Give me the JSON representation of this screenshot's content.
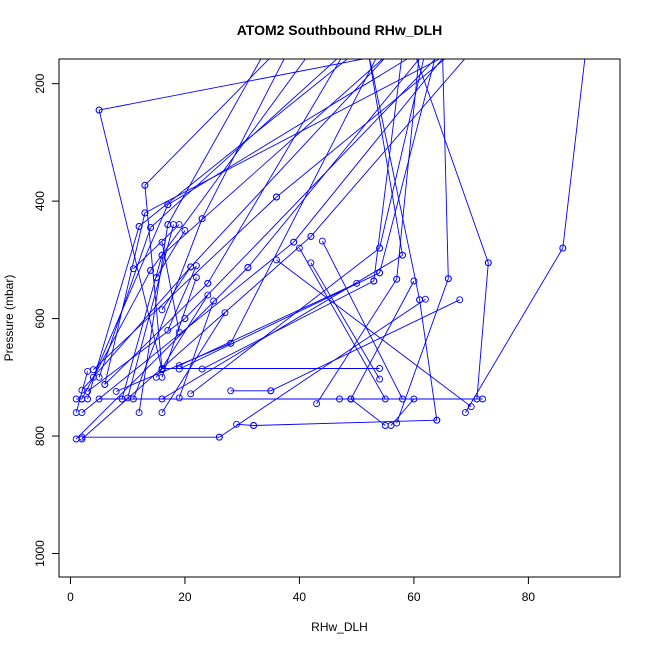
{
  "chart_data": {
    "type": "line",
    "title": "ATOM2 Southbound RHw_DLH",
    "xlabel": "RHw_DLH",
    "ylabel": "Pressure (mbar)",
    "xlim": [
      -2,
      96
    ],
    "ylim": [
      1040,
      158
    ],
    "y_inverted": true,
    "x_ticks": [
      0,
      20,
      40,
      60,
      80
    ],
    "y_ticks": [
      200,
      400,
      600,
      800,
      1000
    ],
    "grid": false,
    "legend": "none",
    "colors": {
      "series": "#0000ff",
      "axes": "#000000",
      "background": "#ffffff"
    },
    "marker": "open-circle",
    "series": [
      {
        "x": [
          5,
          16
        ],
        "y": [
          245,
          687
        ]
      },
      {
        "x": [
          5,
          58
        ],
        "y": [
          245,
          145
        ]
      },
      {
        "x": [
          13,
          16
        ],
        "y": [
          373,
          686
        ]
      },
      {
        "x": [
          13,
          36
        ],
        "y": [
          373,
          145
        ]
      },
      {
        "x": [
          16,
          9
        ],
        "y": [
          492,
          737
        ]
      },
      {
        "x": [
          16,
          56
        ],
        "y": [
          492,
          145
        ]
      },
      {
        "x": [
          28,
          8
        ],
        "y": [
          642,
          724
        ]
      },
      {
        "x": [
          28,
          54
        ],
        "y": [
          642,
          145
        ]
      },
      {
        "x": [
          20,
          3
        ],
        "y": [
          600,
          724
        ]
      },
      {
        "x": [
          20,
          65
        ],
        "y": [
          600,
          145
        ]
      },
      {
        "x": [
          14,
          2
        ],
        "y": [
          518,
          737
        ]
      },
      {
        "x": [
          14,
          42
        ],
        "y": [
          518,
          145
        ]
      },
      {
        "x": [
          12,
          3
        ],
        "y": [
          443,
          737
        ]
      },
      {
        "x": [
          12,
          50
        ],
        "y": [
          443,
          145
        ]
      },
      {
        "x": [
          17,
          4
        ],
        "y": [
          406,
          700
        ]
      },
      {
        "x": [
          17,
          61
        ],
        "y": [
          406,
          145
        ]
      },
      {
        "x": [
          24,
          6
        ],
        "y": [
          540,
          712
        ]
      },
      {
        "x": [
          24,
          48
        ],
        "y": [
          540,
          145
        ]
      },
      {
        "x": [
          13,
          6
        ],
        "y": [
          420,
          712
        ]
      },
      {
        "x": [
          13,
          67
        ],
        "y": [
          420,
          145
        ]
      },
      {
        "x": [
          23,
          11
        ],
        "y": [
          430,
          737
        ]
      },
      {
        "x": [
          23,
          38
        ],
        "y": [
          430,
          145
        ]
      },
      {
        "x": [
          21,
          2
        ],
        "y": [
          512,
          722
        ]
      },
      {
        "x": [
          21,
          56
        ],
        "y": [
          512,
          145
        ]
      },
      {
        "x": [
          36,
          4
        ],
        "y": [
          393,
          687
        ]
      },
      {
        "x": [
          36,
          67
        ],
        "y": [
          393,
          145
        ]
      },
      {
        "x": [
          39,
          2
        ],
        "y": [
          470,
          760
        ]
      },
      {
        "x": [
          39,
          66
        ],
        "y": [
          470,
          145
        ]
      },
      {
        "x": [
          42,
          2
        ],
        "y": [
          460,
          805
        ]
      },
      {
        "x": [
          42,
          70
        ],
        "y": [
          460,
          145
        ]
      },
      {
        "x": [
          31,
          1
        ],
        "y": [
          513,
          805
        ]
      },
      {
        "x": [
          31,
          62
        ],
        "y": [
          513,
          145
        ]
      },
      {
        "x": [
          54,
          19
        ],
        "y": [
          522,
          686
        ]
      },
      {
        "x": [
          54,
          64
        ],
        "y": [
          522,
          145
        ]
      },
      {
        "x": [
          53,
          23
        ],
        "y": [
          536,
          686
        ]
      },
      {
        "x": [
          53,
          58
        ],
        "y": [
          536,
          145
        ]
      },
      {
        "x": [
          57,
          43
        ],
        "y": [
          533,
          745
        ]
      },
      {
        "x": [
          57,
          61
        ],
        "y": [
          533,
          145
        ]
      },
      {
        "x": [
          54,
          21
        ],
        "y": [
          480,
          728
        ]
      },
      {
        "x": [
          54,
          62
        ],
        "y": [
          480,
          145
        ]
      },
      {
        "x": [
          66,
          57
        ],
        "y": [
          532,
          778
        ]
      },
      {
        "x": [
          66,
          65
        ],
        "y": [
          532,
          145
        ]
      },
      {
        "x": [
          73,
          71
        ],
        "y": [
          505,
          737
        ]
      },
      {
        "x": [
          73,
          60
        ],
        "y": [
          505,
          145
        ]
      },
      {
        "x": [
          86,
          69
        ],
        "y": [
          480,
          760
        ]
      },
      {
        "x": [
          86,
          90
        ],
        "y": [
          480,
          145
        ]
      },
      {
        "x": [
          58,
          16
        ],
        "y": [
          492,
          737
        ]
      },
      {
        "x": [
          58,
          52
        ],
        "y": [
          492,
          145
        ]
      },
      {
        "x": [
          61,
          64
        ],
        "y": [
          568,
          773
        ]
      },
      {
        "x": [
          61,
          52
        ],
        "y": [
          568,
          145
        ]
      },
      {
        "x": [
          14,
          5
        ],
        "y": [
          445,
          700
        ]
      },
      {
        "x": [
          14,
          48
        ],
        "y": [
          445,
          145
        ]
      },
      {
        "x": [
          17,
          12
        ],
        "y": [
          440,
          760
        ]
      },
      {
        "x": [
          17,
          34
        ],
        "y": [
          440,
          145
        ]
      },
      {
        "x": [
          2,
          26
        ],
        "y": [
          802,
          802
        ]
      },
      {
        "x": [
          26,
          62
        ],
        "y": [
          802,
          567
        ]
      },
      {
        "x": [
          29,
          32
        ],
        "y": [
          780,
          782
        ]
      },
      {
        "x": [
          32,
          64
        ],
        "y": [
          782,
          773
        ]
      },
      {
        "x": [
          5,
          72
        ],
        "y": [
          737,
          737
        ]
      },
      {
        "x": [
          35,
          68
        ],
        "y": [
          723,
          568
        ]
      },
      {
        "x": [
          28,
          35
        ],
        "y": [
          723,
          723
        ]
      },
      {
        "x": [
          42,
          54
        ],
        "y": [
          505,
          703
        ]
      },
      {
        "x": [
          44,
          58
        ],
        "y": [
          468,
          737
        ]
      },
      {
        "x": [
          40,
          55
        ],
        "y": [
          480,
          737
        ]
      },
      {
        "x": [
          36,
          70
        ],
        "y": [
          500,
          750
        ]
      },
      {
        "x": [
          50,
          19
        ],
        "y": [
          540,
          680
        ]
      },
      {
        "x": [
          54,
          16
        ],
        "y": [
          685,
          685
        ]
      },
      {
        "x": [
          60,
          49
        ],
        "y": [
          536,
          737
        ]
      },
      {
        "x": [
          1,
          3
        ],
        "y": [
          760,
          690
        ]
      },
      {
        "x": [
          1,
          2
        ],
        "y": [
          737,
          737
        ]
      },
      {
        "x": [
          47,
          49
        ],
        "y": [
          737,
          737
        ]
      },
      {
        "x": [
          49,
          55
        ],
        "y": [
          737,
          782
        ]
      },
      {
        "x": [
          60,
          56
        ],
        "y": [
          737,
          782
        ]
      },
      {
        "x": [
          16,
          27
        ],
        "y": [
          760,
          590
        ]
      },
      {
        "x": [
          19,
          25
        ],
        "y": [
          735,
          570
        ]
      },
      {
        "x": [
          16,
          22
        ],
        "y": [
          700,
          530
        ]
      },
      {
        "x": [
          15,
          24
        ],
        "y": [
          700,
          560
        ]
      },
      {
        "x": [
          10,
          18
        ],
        "y": [
          735,
          440
        ]
      },
      {
        "x": [
          11,
          19
        ],
        "y": [
          515,
          440
        ]
      },
      {
        "x": [
          16,
          21
        ],
        "y": [
          585,
          512
        ]
      },
      {
        "x": [
          15,
          20
        ],
        "y": [
          530,
          450
        ]
      },
      {
        "x": [
          19,
          16
        ],
        "y": [
          623,
          470
        ]
      },
      {
        "x": [
          17,
          22
        ],
        "y": [
          620,
          510
        ]
      }
    ]
  }
}
